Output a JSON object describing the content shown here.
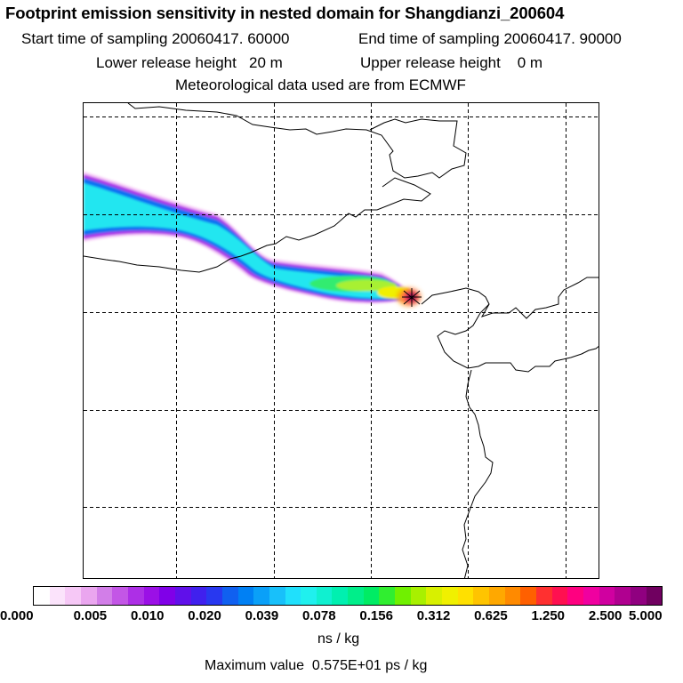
{
  "header": {
    "title": "Footprint emission sensitivity in nested domain for Shangdianzi_200604",
    "start_time": "Start time of sampling 20060417. 60000",
    "end_time": "End time of sampling 20060417. 90000",
    "lower_height": "Lower release height   20 m",
    "upper_height": "Upper release height    0 m",
    "met_data": "Meteorological data used are from ECMWF"
  },
  "legend": {
    "ticks": [
      "0.000",
      "0.005",
      "0.010",
      "0.020",
      "0.039",
      "0.078",
      "0.156",
      "0.312",
      "0.625",
      "1.250",
      "2.500",
      "5.000"
    ],
    "colors": [
      "#ffffff",
      "#fbe3fb",
      "#f6c8f6",
      "#eaa6ef",
      "#d27ee8",
      "#c356e6",
      "#ad2fe6",
      "#9b10e6",
      "#8000e8",
      "#6010ea",
      "#4020ee",
      "#2838f0",
      "#1060f0",
      "#0080f4",
      "#0aa0f8",
      "#18c0fa",
      "#20e0fc",
      "#20f0ee",
      "#10f0d0",
      "#00f0b0",
      "#00ee8a",
      "#00ec64",
      "#30ee30",
      "#70f000",
      "#a8f000",
      "#d8f000",
      "#f0f000",
      "#ffe000",
      "#ffc400",
      "#ffa800",
      "#ff8a00",
      "#ff6000",
      "#ff3030",
      "#ff1050",
      "#ff0080",
      "#f000a0",
      "#d000a0",
      "#b00090",
      "#900080",
      "#700060"
    ],
    "unit": "ns / kg"
  },
  "footer": {
    "max_value": "Maximum value  0.575E+01 ps / kg"
  }
}
